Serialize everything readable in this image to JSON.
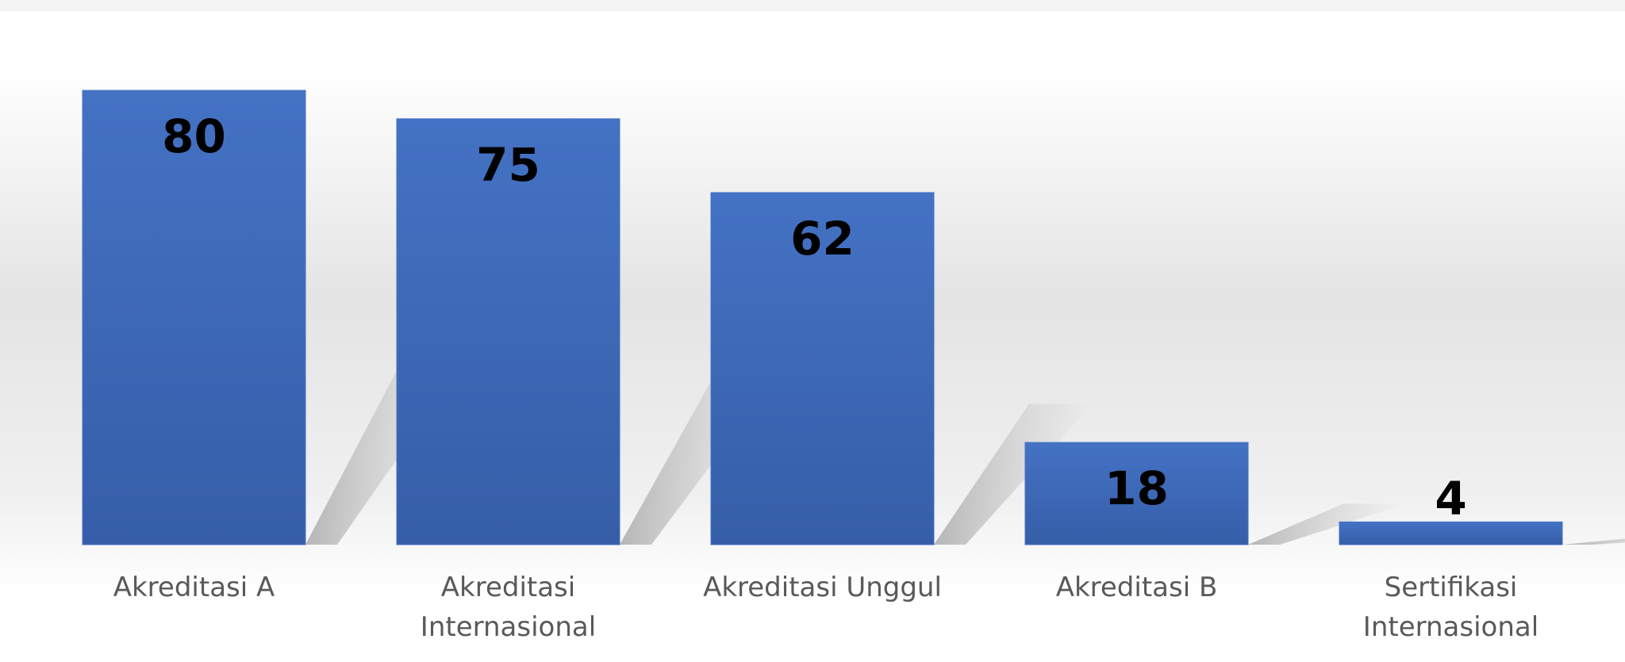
{
  "chart_data": {
    "type": "bar",
    "categories": [
      "Akreditasi A",
      "Akreditasi Internasional",
      "Akreditasi Unggul",
      "Akreditasi B",
      "Sertifikasi Internasional"
    ],
    "values": [
      80,
      75,
      62,
      18,
      4
    ],
    "color": "#4472c4"
  }
}
